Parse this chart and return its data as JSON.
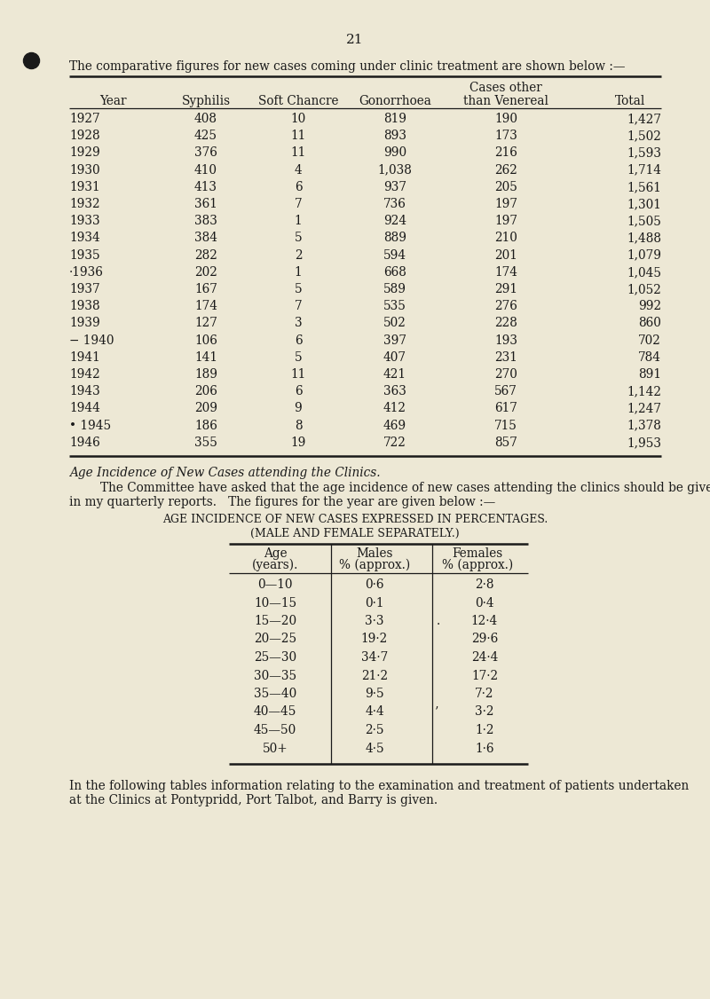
{
  "bg_color": "#ede8d5",
  "page_number": "21",
  "intro_text": "The comparative figures for new cases coming under clinic treatment are shown below :—",
  "table1_col_headers_line1": [
    "",
    "",
    "",
    "",
    "Cases other",
    ""
  ],
  "table1_col_headers_line2": [
    "Year",
    "Syphilis",
    "Soft Chancre",
    "Gonorrhoea",
    "than Venereal",
    "Total"
  ],
  "table1_data": [
    [
      "1927",
      "408",
      "10",
      "819",
      "190",
      "1,427"
    ],
    [
      "1928",
      "425",
      "11",
      "893",
      "173",
      "1,502"
    ],
    [
      "1929",
      "376",
      "11",
      "990",
      "216",
      "1,593"
    ],
    [
      "1930",
      "410",
      "4",
      "1,038",
      "262",
      "1,714"
    ],
    [
      "1931",
      "413",
      "6",
      "937",
      "205",
      "1,561"
    ],
    [
      "1932",
      "361",
      "7",
      "736",
      "197",
      "1,301"
    ],
    [
      "1933",
      "383",
      "1",
      "924",
      "197",
      "1,505"
    ],
    [
      "1934",
      "384",
      "5",
      "889",
      "210",
      "1,488"
    ],
    [
      "1935",
      "282",
      "2",
      "594",
      "201",
      "1,079"
    ],
    [
      "·1936",
      "202",
      "1",
      "668",
      "174",
      "1,045"
    ],
    [
      "1937",
      "167",
      "5",
      "589",
      "291",
      "1,052"
    ],
    [
      "1938",
      "174",
      "7",
      "535",
      "276",
      "992"
    ],
    [
      "1939",
      "127",
      "3",
      "502",
      "228",
      "860"
    ],
    [
      "− 1940",
      "106",
      "6",
      "397",
      "193",
      "702"
    ],
    [
      "1941",
      "141",
      "5",
      "407",
      "231",
      "784"
    ],
    [
      "1942",
      "189",
      "11",
      "421",
      "270",
      "891"
    ],
    [
      "1943",
      "206",
      "6",
      "363",
      "567",
      "1,142"
    ],
    [
      "1944",
      "209",
      "9",
      "412",
      "617",
      "1,247"
    ],
    [
      "1945",
      "186",
      "8",
      "469",
      "715",
      "1,378"
    ],
    [
      "1946",
      "355",
      "19",
      "722",
      "857",
      "1,953"
    ]
  ],
  "italic_heading": "Age Incidence of New Cases attending the Clinics.",
  "body_text1_indent": "        The Committee have asked that the age incidence of new cases attending the clinics should be given",
  "body_text1_cont": "in my quarterly reports.   The figures for the year are given below :—",
  "table2_title1": "Age Incidence of New Cases expressed in Percentages.",
  "table2_title2": "(Male and Female Separately.)",
  "table2_data": [
    [
      "0—10",
      "0·6",
      "2·8"
    ],
    [
      "10—15",
      "0·1",
      "0·4"
    ],
    [
      "15—20",
      "3·3",
      "12·4"
    ],
    [
      "20—25",
      "19·2",
      "29·6"
    ],
    [
      "25—30",
      "34·7",
      "24·4"
    ],
    [
      "30—35",
      "21·2",
      "17·2"
    ],
    [
      "35—40",
      "9·5",
      "7·2"
    ],
    [
      "40—45",
      "4·4",
      "3·2"
    ],
    [
      "45—50",
      "2·5",
      "1·2"
    ],
    [
      "50+",
      "4·5",
      "1·6"
    ]
  ],
  "body_text2_line1": "In the following tables information relating to the examination and treatment of patients undertaken",
  "body_text2_line2": "at the Clinics at Pontypridd, Port Talbot, and Barry is given."
}
